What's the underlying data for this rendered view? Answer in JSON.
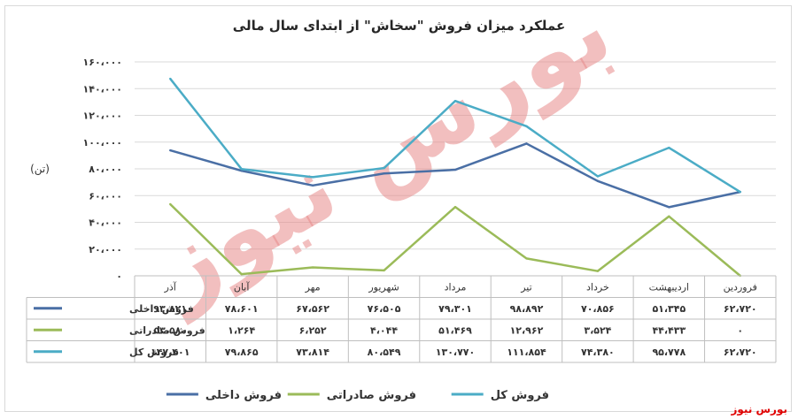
{
  "chart_data": {
    "type": "line",
    "title": "عملکرد میزان فروش \"سخاش\" از ابتدای سال مالی",
    "ylabel": "(تن)",
    "ylim": [
      0,
      160000
    ],
    "yticks": [
      0,
      20000,
      40000,
      60000,
      80000,
      100000,
      120000,
      140000,
      160000
    ],
    "ytick_labels": [
      "۰",
      "۲۰،۰۰۰",
      "۴۰،۰۰۰",
      "۶۰،۰۰۰",
      "۸۰،۰۰۰",
      "۱۰۰،۰۰۰",
      "۱۲۰،۰۰۰",
      "۱۴۰،۰۰۰",
      "۱۶۰،۰۰۰"
    ],
    "grid": true,
    "legend_position": "bottom",
    "categories": [
      "فروردین",
      "اردیبهشت",
      "خرداد",
      "تیر",
      "مرداد",
      "شهریور",
      "مهر",
      "آبان",
      "آذر"
    ],
    "series": [
      {
        "name": "فروش داخلی",
        "color": "#4a6fa5",
        "values": [
          62720,
          51345,
          70856,
          98892,
          79301,
          76505,
          67562,
          78601,
          93821
        ],
        "labels": [
          "۶۲،۷۲۰",
          "۵۱،۳۴۵",
          "۷۰،۸۵۶",
          "۹۸،۸۹۲",
          "۷۹،۳۰۱",
          "۷۶،۵۰۵",
          "۶۷،۵۶۲",
          "۷۸،۶۰۱",
          "۹۳،۸۲۱"
        ]
      },
      {
        "name": "فروش صادراتی",
        "color": "#9bbb59",
        "values": [
          0,
          44433,
          3524,
          12962,
          51469,
          4044,
          6252,
          1264,
          53580
        ],
        "labels": [
          "۰",
          "۴۴،۴۳۳",
          "۳،۵۲۴",
          "۱۲،۹۶۲",
          "۵۱،۴۶۹",
          "۴،۰۴۴",
          "۶،۲۵۲",
          "۱،۲۶۴",
          "۵۳،۵۸۰"
        ]
      },
      {
        "name": "فروش کل",
        "color": "#4bacc6",
        "values": [
          62720,
          95778,
          74380,
          111854,
          130770,
          80549,
          73814,
          79865,
          147401
        ],
        "labels": [
          "۶۲،۷۲۰",
          "۹۵،۷۷۸",
          "۷۴،۳۸۰",
          "۱۱۱،۸۵۴",
          "۱۳۰،۷۷۰",
          "۸۰،۵۴۹",
          "۷۳،۸۱۴",
          "۷۹،۸۶۵",
          "۱۴۷،۴۰۱"
        ]
      }
    ],
    "legend_order": [
      2,
      1,
      0
    ]
  },
  "watermark": {
    "text": "بورس نیوز",
    "color": "#e88a8a"
  },
  "source_credit": "بورس نیوز"
}
